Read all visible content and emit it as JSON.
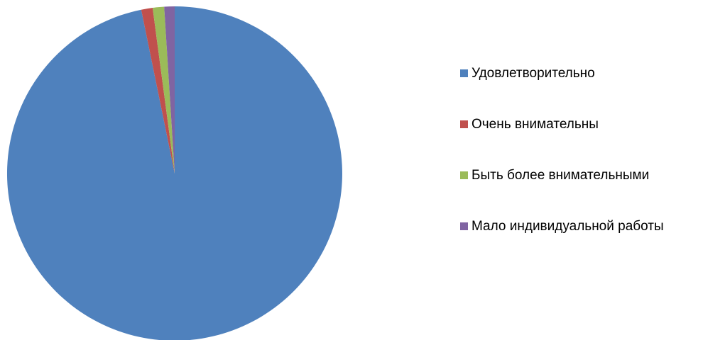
{
  "chart_data": {
    "type": "pie",
    "title": "",
    "legend_position": "right",
    "categories": [
      "Удовлетворительно",
      "Очень внимательны",
      "Быть более внимательными",
      "Мало индивидуальной работы"
    ],
    "values": [
      96.8,
      1.1,
      1.1,
      1.0
    ],
    "colors": [
      "#4F81BD",
      "#C0504D",
      "#9BBB59",
      "#8064A2"
    ],
    "start_angle_deg": 0,
    "direction": "clockwise"
  }
}
